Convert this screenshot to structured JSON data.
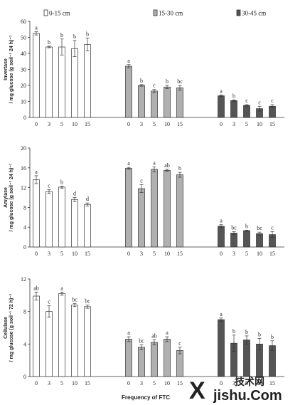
{
  "legend": {
    "entries": [
      {
        "label": "0-15 cm",
        "color": "#ffffff"
      },
      {
        "label": "15-30 cm",
        "color": "#b0b0b0"
      },
      {
        "label": "30-45 cm",
        "color": "#555555"
      }
    ]
  },
  "xlabel": "Frequency of FTC",
  "watermark": {
    "mark": "X",
    "cn": "技术网",
    "domain": "jishu.Com"
  },
  "chart_data": [
    {
      "type": "bar",
      "panel": "invertase",
      "ylabel_lines": [
        "Invertase",
        "/ mg glucose (g soil⁻¹ 24 h)⁻¹"
      ],
      "ylim": [
        0,
        60
      ],
      "yticks": [
        0,
        10,
        20,
        30,
        40,
        50,
        60
      ],
      "categories": [
        "0",
        "3",
        "5",
        "10",
        "15"
      ],
      "series": [
        {
          "name": "0-15 cm",
          "values": [
            52.5,
            44,
            44,
            43,
            45.5
          ],
          "errors": [
            1,
            0.5,
            5,
            5,
            4
          ],
          "letters": [
            "a",
            "b",
            "b",
            "b",
            "b"
          ]
        },
        {
          "name": "15-30 cm",
          "values": [
            32,
            20,
            16.5,
            19,
            18.5
          ],
          "errors": [
            1,
            0.5,
            1,
            1,
            1.5
          ],
          "letters": [
            "a",
            "b",
            "c",
            "b",
            "bc"
          ]
        },
        {
          "name": "30-45 cm",
          "values": [
            13.5,
            10.5,
            7.5,
            5.5,
            7
          ],
          "errors": [
            0.5,
            0.5,
            0.5,
            1.5,
            1
          ],
          "letters": [
            "a",
            "b",
            "c",
            "c",
            "c"
          ]
        }
      ]
    },
    {
      "type": "bar",
      "panel": "amylase",
      "ylabel_lines": [
        "Amylase",
        "/ mg glucose (g soil⁻¹ 24 h)⁻¹"
      ],
      "ylim": [
        0,
        20
      ],
      "yticks": [
        0,
        4,
        8,
        12,
        16,
        20
      ],
      "categories": [
        "0",
        "3",
        "5",
        "10",
        "15"
      ],
      "series": [
        {
          "name": "0-15 cm",
          "values": [
            13.6,
            11.2,
            12.1,
            9.6,
            8.6
          ],
          "errors": [
            0.8,
            0.4,
            0.2,
            0.4,
            0.3
          ],
          "letters": [
            "a",
            "c",
            "b",
            "d",
            "d"
          ]
        },
        {
          "name": "15-30 cm",
          "values": [
            15.9,
            11.8,
            15.7,
            15.5,
            14.6
          ],
          "errors": [
            0.2,
            0.8,
            0.5,
            0.2,
            0.5
          ],
          "letters": [
            "a",
            "c",
            "a",
            "ab",
            "b"
          ]
        },
        {
          "name": "30-45 cm",
          "values": [
            4.2,
            2.8,
            3.3,
            2.7,
            2.5
          ],
          "errors": [
            0.3,
            0.3,
            0.1,
            0.3,
            0.6
          ],
          "letters": [
            "a",
            "bc",
            "b",
            "bc",
            "c"
          ]
        }
      ]
    },
    {
      "type": "bar",
      "panel": "cellulase",
      "ylabel_lines": [
        "Cellulase",
        "/ mg glucose (g soil⁻¹ 72 h)⁻¹"
      ],
      "ylim": [
        0,
        12
      ],
      "yticks": [
        0,
        4,
        8,
        12
      ],
      "categories": [
        "0",
        "3",
        "5",
        "10",
        "15"
      ],
      "series": [
        {
          "name": "0-15 cm",
          "values": [
            9.9,
            8.0,
            10.2,
            8.8,
            8.6
          ],
          "errors": [
            0.5,
            0.7,
            0.2,
            0.2,
            0.2
          ],
          "letters": [
            "ab",
            "c",
            "a",
            "bc",
            "bc"
          ]
        },
        {
          "name": "15-30 cm",
          "values": [
            4.6,
            3.6,
            4.2,
            4.6,
            3.2
          ],
          "errors": [
            0.3,
            0.3,
            0.3,
            0.3,
            0.4
          ],
          "letters": [
            "a",
            "bc",
            "ab",
            "a",
            "c"
          ]
        },
        {
          "name": "30-45 cm",
          "values": [
            7.0,
            4.1,
            4.5,
            4.0,
            3.8
          ],
          "errors": [
            0.2,
            1.0,
            0.5,
            0.7,
            0.6
          ],
          "letters": [
            "a",
            "b",
            "b",
            "b",
            "b"
          ]
        }
      ]
    }
  ]
}
